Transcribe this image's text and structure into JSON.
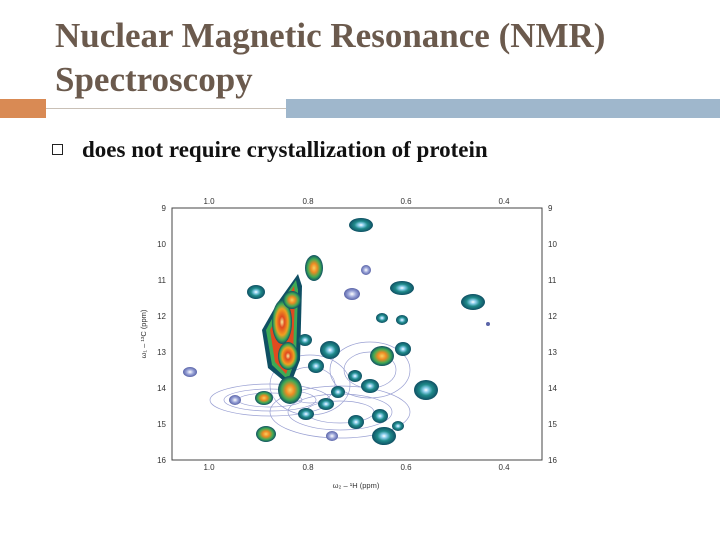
{
  "slide": {
    "title_line1": "Nuclear Magnetic Resonance (NMR)",
    "title_line2": "Spectroscopy",
    "bullet_text": "does not require crystallization of protein"
  },
  "spectrum": {
    "x_ticks": [
      "1.0",
      "0.8",
      "0.6",
      "0.4"
    ],
    "y_ticks": [
      "9",
      "10",
      "11",
      "12",
      "13",
      "14",
      "15",
      "16"
    ],
    "x_axis_label": "ω₂ – ¹H (ppm)",
    "y_axis_label": "ω₁ – ¹³C (ppm)"
  },
  "colors": {
    "title": "#6b5a4d",
    "accent_orange": "#d98a54",
    "accent_blue": "#9fb7cc"
  }
}
